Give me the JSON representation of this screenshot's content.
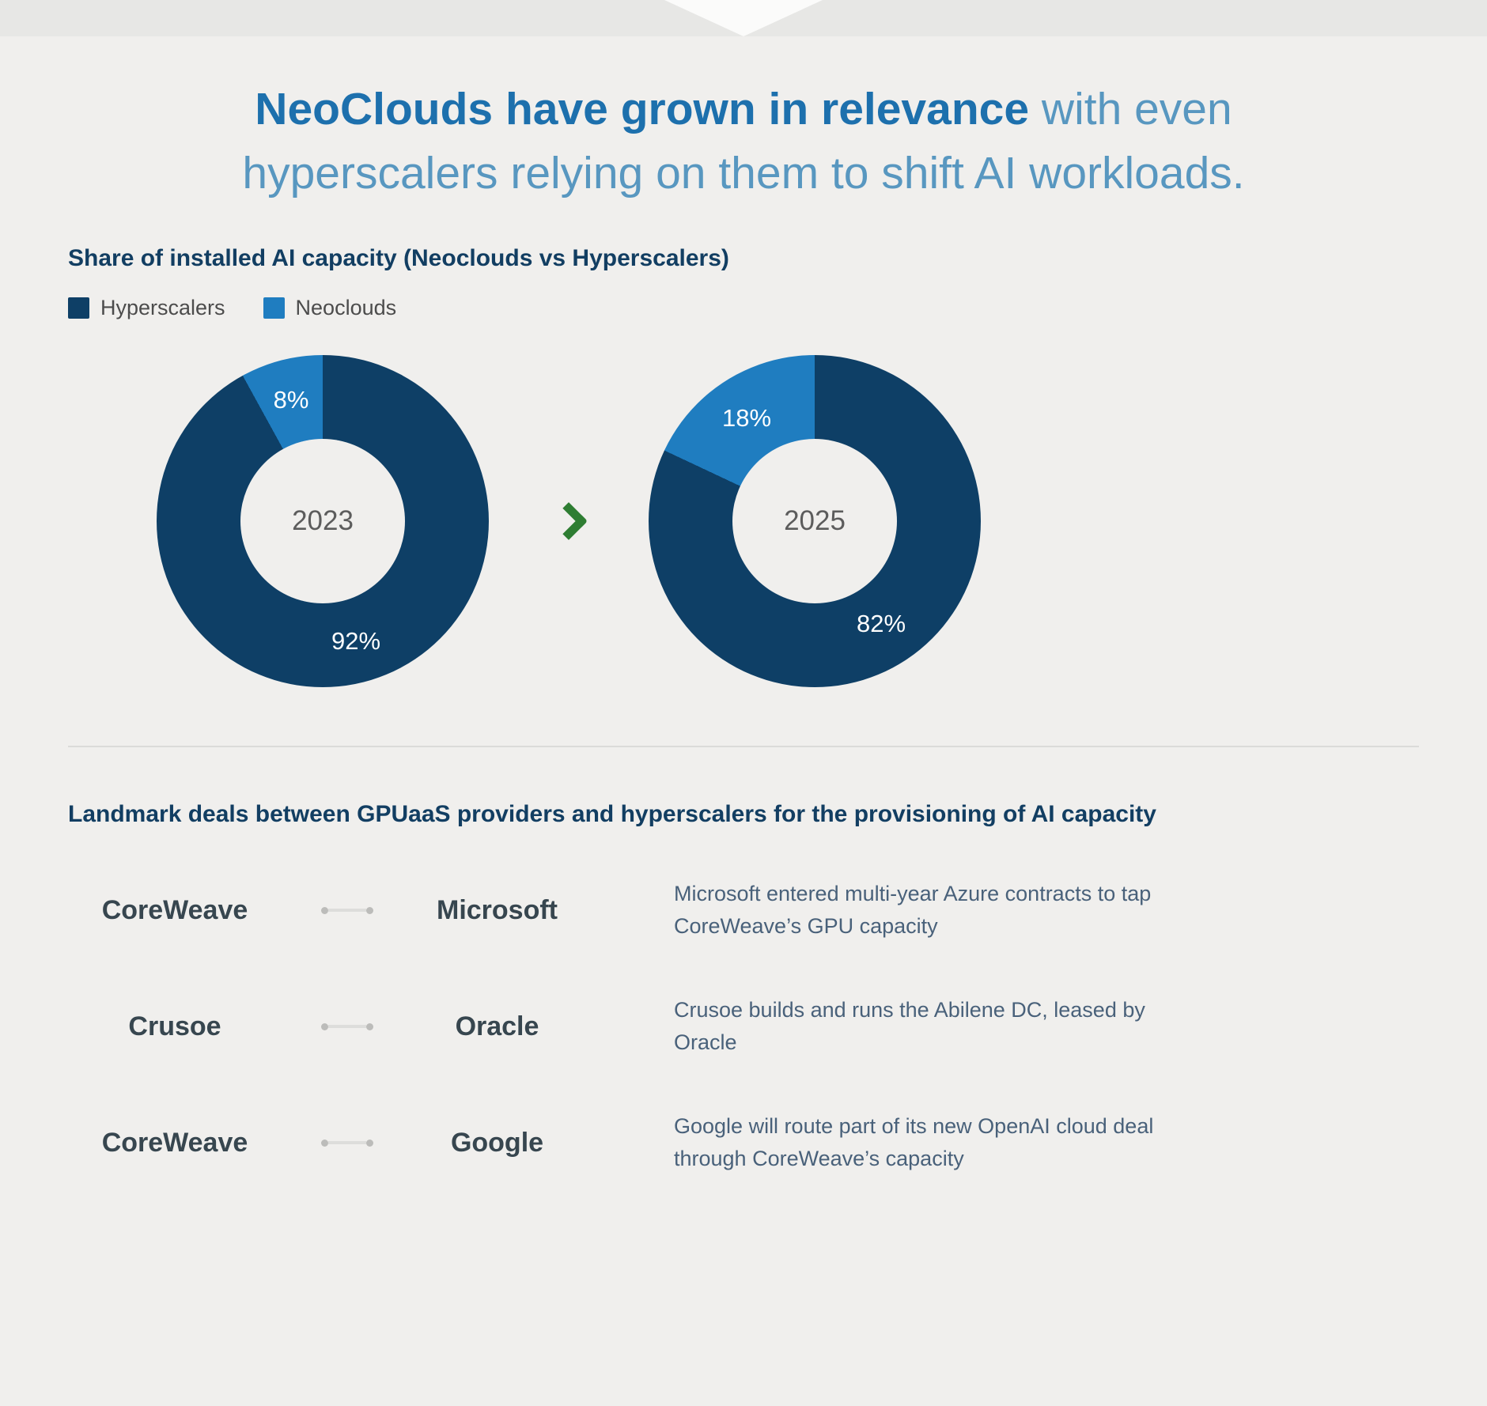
{
  "title": {
    "bold": "NeoClouds have grown in relevance",
    "rest": " with even hyperscalers relying on them to shift AI workloads."
  },
  "colors": {
    "hyperscalers": "#0e3f66",
    "neoclouds": "#1f7dc0",
    "arrow_green": "#2e7d32",
    "title_bold": "#1d70ad",
    "title_light": "#5897c0",
    "background": "#f0efed"
  },
  "chart_section": {
    "heading": "Share of installed AI capacity (Neoclouds vs Hyperscalers)",
    "legend": [
      {
        "label": "Hyperscalers"
      },
      {
        "label": "Neoclouds"
      }
    ]
  },
  "chart_data": {
    "type": "pie",
    "title": "Share of installed AI capacity (Neoclouds vs Hyperscalers)",
    "legend": [
      "Hyperscalers",
      "Neoclouds"
    ],
    "legend_position": "top-left",
    "donuts": [
      {
        "center_label": "2023",
        "segments": [
          {
            "name": "Hyperscalers",
            "value": 92,
            "label": "92%"
          },
          {
            "name": "Neoclouds",
            "value": 8,
            "label": "8%"
          }
        ]
      },
      {
        "center_label": "2025",
        "segments": [
          {
            "name": "Hyperscalers",
            "value": 82,
            "label": "82%"
          },
          {
            "name": "Neoclouds",
            "value": 18,
            "label": "18%"
          }
        ]
      }
    ]
  },
  "deals_section": {
    "heading": "Landmark deals between GPUaaS providers and hyperscalers for the provisioning of AI capacity",
    "deals": [
      {
        "provider": "CoreWeave",
        "partner": "Microsoft",
        "description": "Microsoft entered multi-year Azure contracts to tap CoreWeave’s GPU capacity"
      },
      {
        "provider": "Crusoe",
        "partner": "Oracle",
        "description": "Crusoe builds and runs the Abilene DC, leased by Oracle"
      },
      {
        "provider": "CoreWeave",
        "partner": "Google",
        "description": "Google will route part of its new OpenAI cloud deal through CoreWeave’s capacity"
      }
    ]
  }
}
